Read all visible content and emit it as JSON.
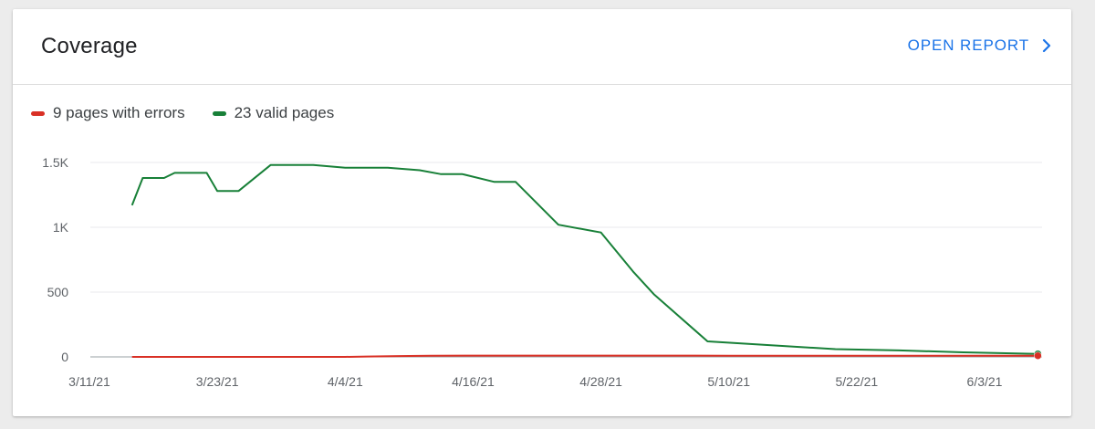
{
  "card": {
    "title": "Coverage",
    "open_report_label": "OPEN REPORT"
  },
  "colors": {
    "accent": "#1a73e8",
    "errors": "#d93025",
    "valid": "#188038",
    "grid": "#e8eaed",
    "axis": "#9aa0a6"
  },
  "chart_data": {
    "type": "line",
    "x_ticks": [
      "3/11/21",
      "3/23/21",
      "4/4/21",
      "4/16/21",
      "4/28/21",
      "5/10/21",
      "5/22/21",
      "6/3/21"
    ],
    "y_ticks": [
      "0",
      "500",
      "1K",
      "1.5K"
    ],
    "ylim": [
      0,
      1500
    ],
    "grid": true,
    "legend_position": "top-left",
    "series": [
      {
        "name": "9 pages with errors",
        "key": "errors",
        "x": [
          "2021-03-15",
          "2021-03-22",
          "2021-03-29",
          "2021-04-04",
          "2021-04-06",
          "2021-04-09",
          "2021-04-12",
          "2021-04-16",
          "2021-04-20",
          "2021-04-28",
          "2021-05-10",
          "2021-05-22",
          "2021-06-03",
          "2021-06-08"
        ],
        "values": [
          0,
          0,
          0,
          0,
          3,
          6,
          9,
          10,
          10,
          10,
          9,
          9,
          9,
          9
        ]
      },
      {
        "name": "23 valid pages",
        "key": "valid",
        "x": [
          "2021-03-15",
          "2021-03-16",
          "2021-03-18",
          "2021-03-19",
          "2021-03-22",
          "2021-03-23",
          "2021-03-25",
          "2021-03-28",
          "2021-04-01",
          "2021-04-04",
          "2021-04-06",
          "2021-04-08",
          "2021-04-11",
          "2021-04-13",
          "2021-04-15",
          "2021-04-18",
          "2021-04-20",
          "2021-04-24",
          "2021-04-28",
          "2021-05-01",
          "2021-05-03",
          "2021-05-08",
          "2021-05-20",
          "2021-05-26",
          "2021-06-01",
          "2021-06-04",
          "2021-06-08"
        ],
        "values": [
          1170,
          1380,
          1380,
          1420,
          1420,
          1280,
          1280,
          1480,
          1480,
          1460,
          1460,
          1460,
          1440,
          1410,
          1410,
          1350,
          1350,
          1020,
          960,
          660,
          480,
          120,
          60,
          50,
          35,
          30,
          23
        ]
      }
    ]
  }
}
